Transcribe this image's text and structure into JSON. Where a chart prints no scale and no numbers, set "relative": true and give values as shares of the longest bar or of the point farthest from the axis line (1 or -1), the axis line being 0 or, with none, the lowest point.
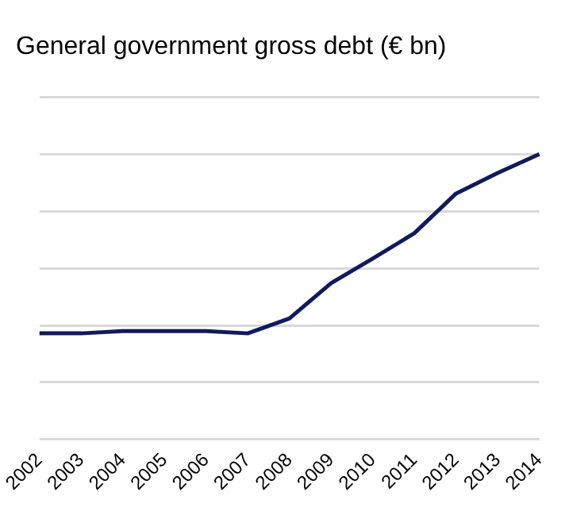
{
  "chart_data": {
    "type": "line",
    "title": "General government gross debt (€ bn)",
    "relative": true,
    "grid": "y",
    "legend": false,
    "marker": "none",
    "line_style": "solid",
    "categories": [
      "2002",
      "2003",
      "2004",
      "2005",
      "2006",
      "2007",
      "2008",
      "2009",
      "2010",
      "2011",
      "2012",
      "2013",
      "2014"
    ],
    "series": [
      {
        "color": "#101a5c",
        "values": [
          0.372,
          0.372,
          0.38,
          0.38,
          0.38,
          0.372,
          0.424,
          0.548,
          0.634,
          0.723,
          0.862,
          0.934,
          1
        ]
      }
    ]
  }
}
